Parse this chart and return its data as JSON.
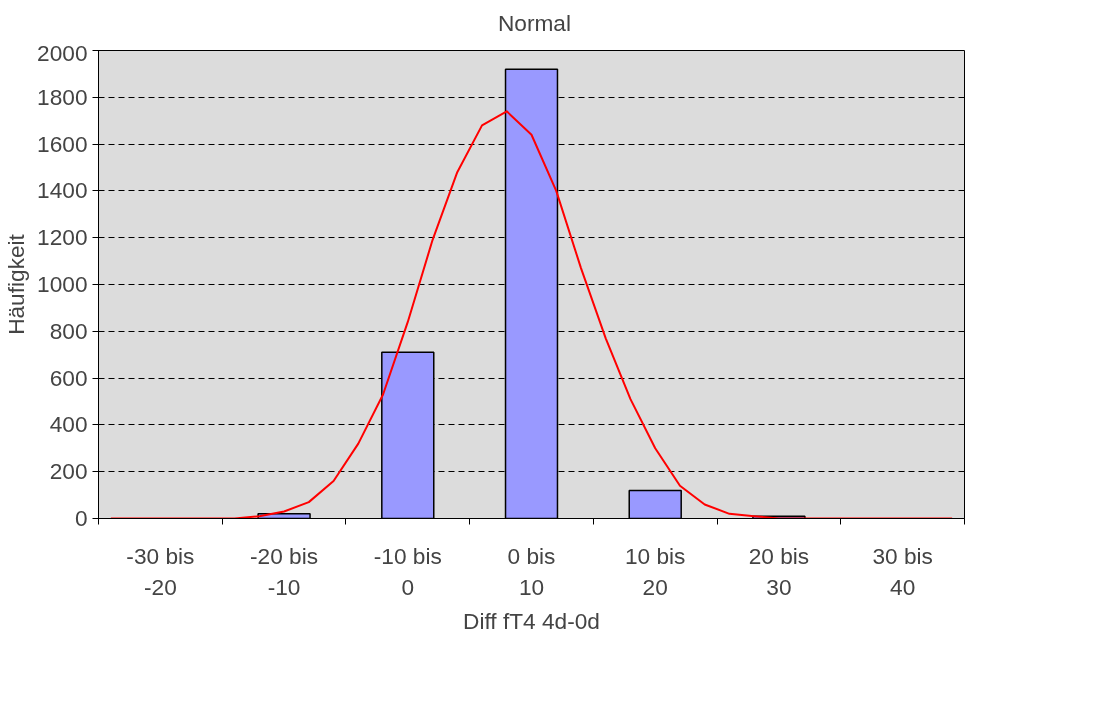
{
  "chart_data": {
    "type": "bar",
    "xlabel": "Diff fT4 4d-0d",
    "ylabel": "Häufigkeit",
    "categories": [
      null,
      null,
      "-30 bis -20",
      null,
      null,
      null,
      null,
      "-20 bis -10",
      null,
      null,
      null,
      null,
      "-10 bis 0",
      null,
      null,
      null,
      null,
      "0 bis 10",
      null,
      null,
      null,
      null,
      "10 bis 20",
      null,
      null,
      null,
      null,
      "20 bis 30",
      null,
      null,
      null,
      null,
      "30 bis 40",
      null,
      null
    ],
    "ylim": [
      0,
      2000
    ],
    "yticks": [
      0,
      200,
      400,
      600,
      800,
      1000,
      1200,
      1400,
      1600,
      1800,
      2000
    ],
    "grid": "y",
    "legend": "top",
    "series": [
      {
        "color": "#9999ff",
        "values": [
          null,
          null,
          null,
          null,
          null,
          null,
          null,
          20,
          null,
          null,
          null,
          null,
          710,
          null,
          null,
          null,
          null,
          1920,
          null,
          null,
          null,
          null,
          120,
          null,
          null,
          null,
          null,
          10,
          null,
          null,
          null,
          null,
          null,
          null,
          null
        ]
      },
      {
        "type": "line",
        "name": "Normal",
        "color": "#ff0000",
        "values": [
          0,
          0,
          0,
          0,
          0,
          0,
          10,
          30,
          70,
          160,
          320,
          530,
          840,
          1190,
          1480,
          1680,
          1740,
          1640,
          1400,
          1070,
          770,
          510,
          300,
          140,
          60,
          20,
          10,
          0,
          0,
          0,
          0,
          0,
          0,
          0,
          0
        ]
      }
    ]
  }
}
